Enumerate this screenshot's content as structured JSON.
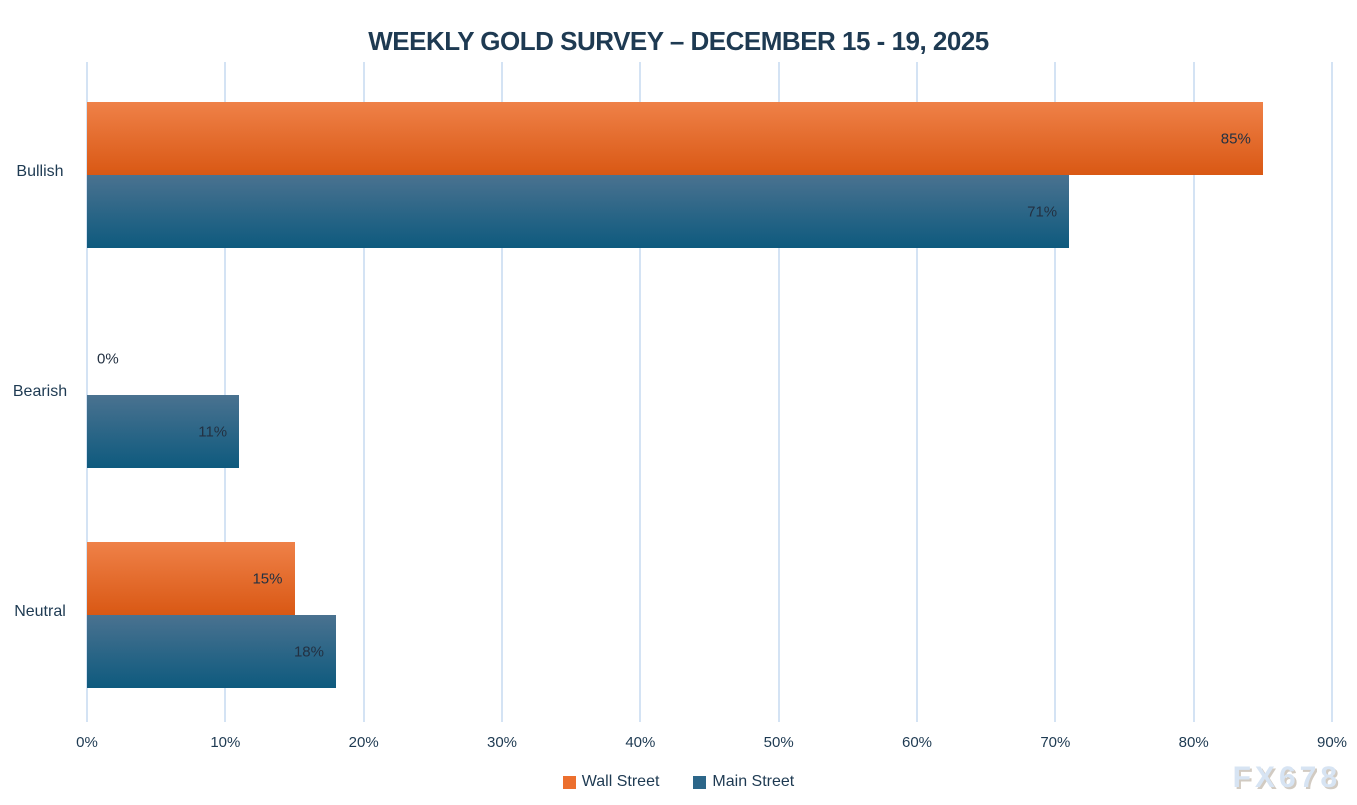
{
  "title": "WEEKLY GOLD SURVEY – DECEMBER 15 - 19, 2025",
  "watermark": "FX678",
  "chart_data": {
    "type": "bar",
    "orientation": "horizontal",
    "title": "WEEKLY GOLD SURVEY – DECEMBER 15 - 19, 2025",
    "categories": [
      "Bullish",
      "Bearish",
      "Neutral"
    ],
    "series": [
      {
        "name": "Wall Street",
        "values": [
          85,
          0,
          15
        ],
        "color_top": "#ef8148",
        "color_bottom": "#d95814",
        "legend_color": "#ec6f2e"
      },
      {
        "name": "Main Street",
        "values": [
          71,
          11,
          18
        ],
        "color_top": "#4a7290",
        "color_bottom": "#0e5a7e",
        "legend_color": "#2c6689"
      }
    ],
    "value_suffix": "%",
    "xlabel": "",
    "ylabel": "",
    "xlim": [
      0,
      90
    ],
    "axis_ticks": [
      "0%",
      "10%",
      "20%",
      "30%",
      "40%",
      "50%",
      "60%",
      "70%",
      "80%",
      "90%"
    ],
    "grid": true,
    "legend_position": "bottom"
  },
  "colors": {
    "text_navy": "#1e3a52",
    "value_label": "#233142",
    "gridline": "#d4e3f4",
    "background": "#ffffff",
    "watermark_fill": "#d7e4f3"
  }
}
